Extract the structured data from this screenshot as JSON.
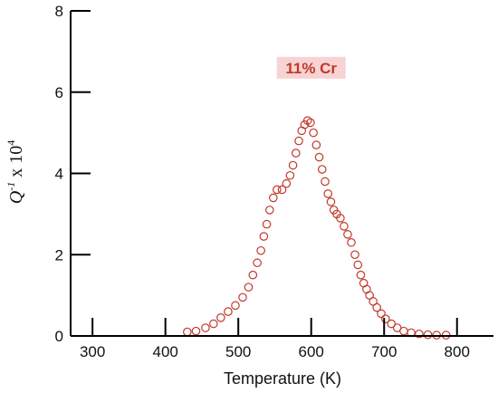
{
  "chart_data": {
    "type": "scatter",
    "title": "",
    "xlabel": "Temperature (K)",
    "ylabel": "Q-1 x 104",
    "ylabel_parts": {
      "base": "Q",
      "exp1": "-1",
      "middle": " x 10",
      "exp2": "4"
    },
    "xlim": [
      270,
      850
    ],
    "ylim": [
      0,
      8
    ],
    "x_ticks": [
      300,
      400,
      500,
      600,
      700,
      800
    ],
    "y_ticks": [
      0,
      2,
      4,
      6,
      8
    ],
    "grid": false,
    "annotation": {
      "text": "11% Cr",
      "x": 600,
      "y": 6.6,
      "color": "#c0392b",
      "background": "#f7d3d3"
    },
    "series": [
      {
        "marker": "open-circle",
        "color": "#c0392b",
        "x": [
          430,
          442,
          455,
          466,
          476,
          486,
          496,
          506,
          514,
          520,
          526,
          531,
          535,
          539,
          543,
          548,
          553,
          560,
          566,
          571,
          575,
          579,
          583,
          587,
          591,
          595,
          599,
          603,
          607,
          611,
          615,
          619,
          623,
          627,
          631,
          635,
          640,
          645,
          650,
          655,
          660,
          664,
          668,
          672,
          676,
          680,
          685,
          690,
          696,
          702,
          710,
          718,
          727,
          737,
          748,
          760,
          772,
          785
        ],
        "y": [
          0.1,
          0.12,
          0.2,
          0.3,
          0.45,
          0.6,
          0.75,
          0.95,
          1.2,
          1.5,
          1.8,
          2.1,
          2.45,
          2.75,
          3.1,
          3.4,
          3.6,
          3.6,
          3.75,
          3.95,
          4.2,
          4.5,
          4.8,
          5.05,
          5.2,
          5.3,
          5.25,
          5.0,
          4.7,
          4.4,
          4.1,
          3.8,
          3.5,
          3.3,
          3.1,
          3.0,
          2.9,
          2.7,
          2.5,
          2.3,
          2.0,
          1.75,
          1.5,
          1.3,
          1.15,
          1.0,
          0.85,
          0.7,
          0.55,
          0.42,
          0.3,
          0.2,
          0.12,
          0.08,
          0.05,
          0.03,
          0.02,
          0.02
        ]
      }
    ]
  }
}
